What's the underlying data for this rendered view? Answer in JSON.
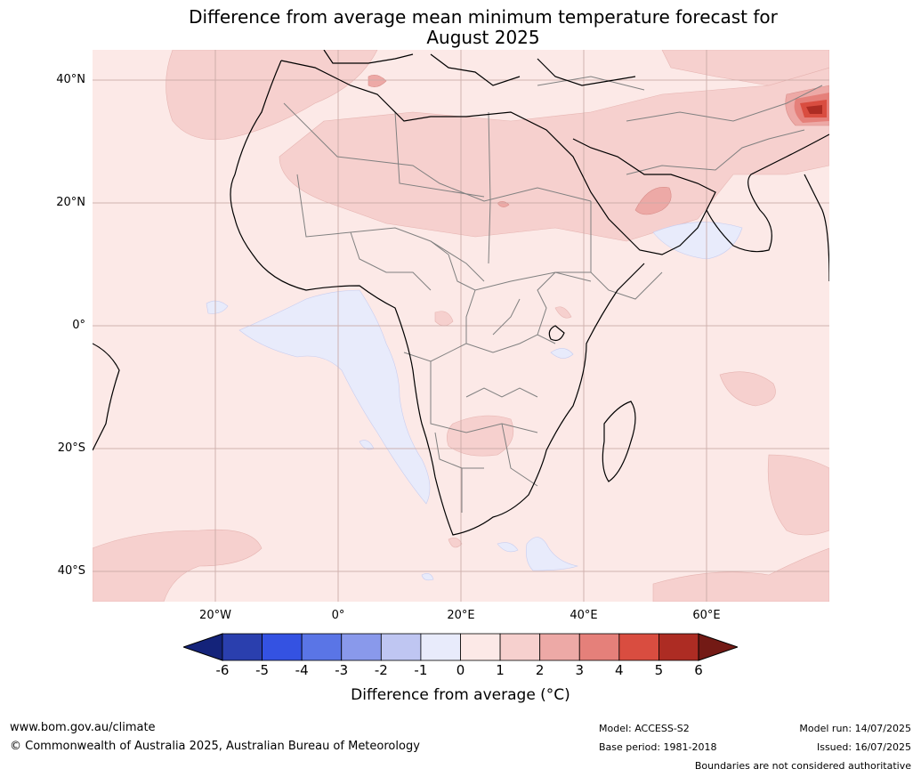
{
  "title_line1": "Difference from average mean minimum temperature forecast for",
  "title_line2": "August 2025",
  "map": {
    "region": "Africa",
    "lat_labels": [
      "40°N",
      "20°N",
      "0°",
      "20°S",
      "40°S"
    ],
    "lon_labels": [
      "20°W",
      "0°",
      "20°E",
      "40°E",
      "60°E"
    ],
    "gridlines": true
  },
  "colorbar": {
    "title": "Difference from average (°C)",
    "ticks": [
      "-6",
      "-5",
      "-4",
      "-3",
      "-2",
      "-1",
      "0",
      "1",
      "2",
      "3",
      "4",
      "5",
      "6"
    ],
    "colors": {
      "below_min": "#14237a",
      "bins": [
        "#2a3fae",
        "#3452e2",
        "#5a75e6",
        "#8999eb",
        "#bfc6f2",
        "#e8ebfb",
        "#fce9e7",
        "#f6d0ce",
        "#eda9a6",
        "#e5807a",
        "#d94d40",
        "#ad2c23"
      ],
      "above_max": "#731a15"
    },
    "dominant_color": "#fce9e7",
    "land_outline": "#000000",
    "border_color": "#808080"
  },
  "footer": {
    "website": "www.bom.gov.au/climate",
    "copyright": "© Commonwealth of Australia 2025, Australian Bureau of Meteorology",
    "model": "Model: ACCESS-S2",
    "base_period": "Base period: 1981-2018",
    "model_run": "Model run: 14/07/2025",
    "issued": "Issued: 16/07/2025",
    "disclaimer": "Boundaries are not considered authoritative"
  }
}
